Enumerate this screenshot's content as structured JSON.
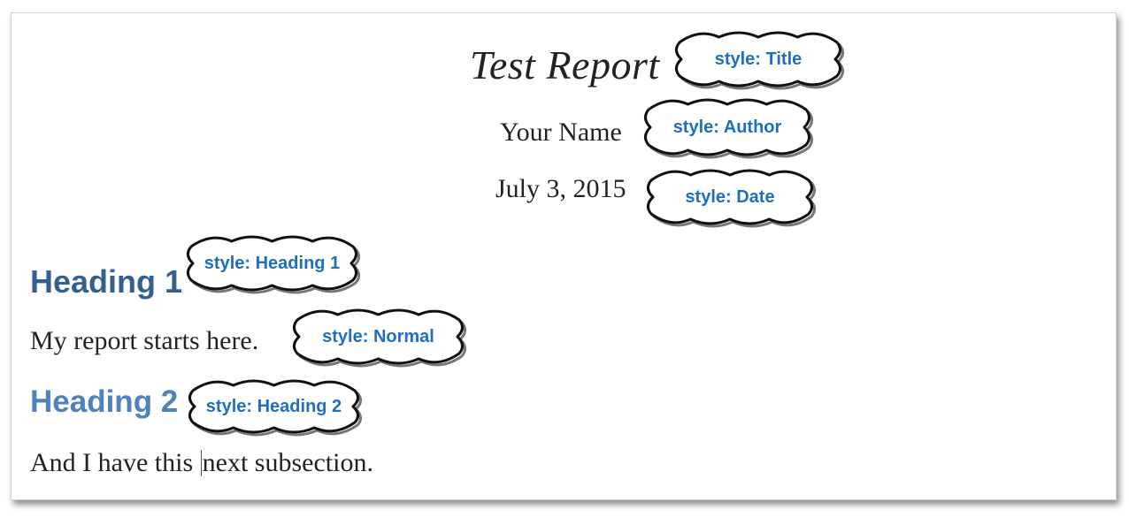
{
  "document": {
    "title": "Test Report",
    "author": "Your Name",
    "date": "July 3, 2015",
    "heading1": "Heading 1",
    "normal_text": "My report starts here.",
    "heading2": "Heading 2",
    "body_text_before_cursor": "And I have this ",
    "body_text_after_cursor": "next subsection."
  },
  "callouts": {
    "title": "style: Title",
    "author": "style: Author",
    "date": "style: Date",
    "heading1": "style: Heading 1",
    "normal": "style: Normal",
    "heading2": "style: Heading 2"
  },
  "colors": {
    "callout_text": "#1f6fbf",
    "heading1": "#365f91",
    "heading2": "#4f81bd"
  }
}
